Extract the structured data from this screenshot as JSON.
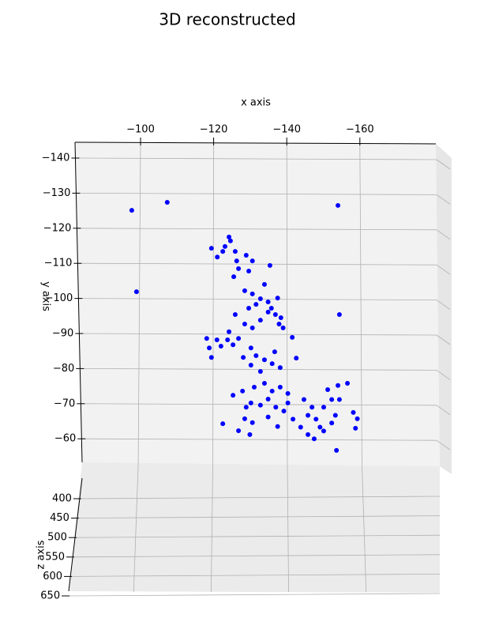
{
  "chart_data": {
    "type": "scatter",
    "title": "3D reconstructed",
    "x_label": "x axis",
    "y_label": "y axis",
    "z_label": "z axis",
    "xlim": [
      -80,
      -180
    ],
    "ylim": [
      -145,
      -50
    ],
    "xticks": [
      {
        "value": -100,
        "label": "−100"
      },
      {
        "value": -120,
        "label": "−120"
      },
      {
        "value": -140,
        "label": "−140"
      },
      {
        "value": -160,
        "label": "−160"
      }
    ],
    "yticks": [
      {
        "value": -140,
        "label": "−140"
      },
      {
        "value": -130,
        "label": "−130"
      },
      {
        "value": -120,
        "label": "−120"
      },
      {
        "value": -110,
        "label": "−110"
      },
      {
        "value": -100,
        "label": "−100"
      },
      {
        "value": -90,
        "label": "−90"
      },
      {
        "value": -80,
        "label": "−80"
      },
      {
        "value": -70,
        "label": "−70"
      },
      {
        "value": -60,
        "label": "−60"
      }
    ],
    "zticks": [
      400,
      450,
      500,
      550,
      600,
      650
    ],
    "grid": true,
    "series": [
      {
        "color": "#0000ff",
        "x": [
          -97.6,
          -107.3,
          -154.0,
          -98.9,
          -154.4,
          -153.6,
          -124.2,
          -124.6,
          -123.1,
          -125.9,
          -121.0,
          -119.4,
          -126.3,
          -122.5,
          -128.9,
          -130.6,
          -129.6,
          -126.8,
          -135.4,
          -125.5,
          -133.9,
          -128.5,
          -130.6,
          -132.8,
          -134.9,
          -131.6,
          -137.5,
          -135.8,
          -129.6,
          -136.9,
          -138.4,
          -132.8,
          -128.5,
          -125.9,
          -130.6,
          -137.9,
          -134.9,
          -139.0,
          -118.1,
          -120.9,
          -124.2,
          -118.8,
          -122.0,
          -119.4,
          -125.3,
          -123.8,
          -126.8,
          -141.5,
          -130.2,
          -136.7,
          -131.6,
          -128.1,
          -133.9,
          -136.0,
          -130.2,
          -132.8,
          -138.2,
          -142.6,
          -125.3,
          -127.9,
          -131.1,
          -133.9,
          -136.0,
          -138.2,
          -140.3,
          -130.2,
          -132.8,
          -128.9,
          -134.9,
          -137.0,
          -139.2,
          -128.5,
          -130.6,
          -126.8,
          -122.5,
          -129.9,
          -137.5,
          -134.9,
          -151.2,
          -154.0,
          -156.6,
          -152.3,
          -154.4,
          -144.7,
          -146.9,
          -150.1,
          -153.3,
          -145.8,
          -148.0,
          -149.1,
          -145.8,
          -147.5,
          -150.1,
          -152.3,
          -141.7,
          -143.8,
          -158.2,
          -159.3,
          -158.8,
          -140.3
        ],
        "y": [
          -125.1,
          -127.4,
          -126.5,
          -101.9,
          -95.4,
          -56.7,
          -117.5,
          -116.4,
          -114.8,
          -113.4,
          -111.8,
          -114.3,
          -110.7,
          -113.4,
          -112.3,
          -110.7,
          -107.8,
          -108.5,
          -109.4,
          -106.2,
          -104.0,
          -102.2,
          -101.3,
          -99.9,
          -99.0,
          -98.3,
          -100.1,
          -97.2,
          -97.2,
          -95.4,
          -94.5,
          -93.8,
          -92.7,
          -95.4,
          -91.6,
          -92.7,
          -96.1,
          -91.6,
          -88.6,
          -88.2,
          -90.5,
          -85.9,
          -86.4,
          -83.2,
          -86.8,
          -88.2,
          -88.6,
          -88.9,
          -85.9,
          -84.8,
          -83.7,
          -83.2,
          -82.5,
          -81.4,
          -81.0,
          -79.2,
          -80.3,
          -83.0,
          -72.4,
          -73.6,
          -74.7,
          -75.8,
          -73.6,
          -74.7,
          -72.9,
          -70.2,
          -69.6,
          -69.0,
          -71.3,
          -69.0,
          -67.9,
          -65.7,
          -64.6,
          -62.3,
          -64.3,
          -61.2,
          -63.5,
          -66.2,
          -74.0,
          -75.2,
          -75.8,
          -71.2,
          -71.2,
          -71.2,
          -69.0,
          -69.0,
          -66.7,
          -66.7,
          -65.6,
          -63.3,
          -61.2,
          -60.0,
          -62.2,
          -64.5,
          -65.6,
          -63.3,
          -67.5,
          -65.7,
          -63.0,
          -70.2
        ]
      }
    ]
  }
}
